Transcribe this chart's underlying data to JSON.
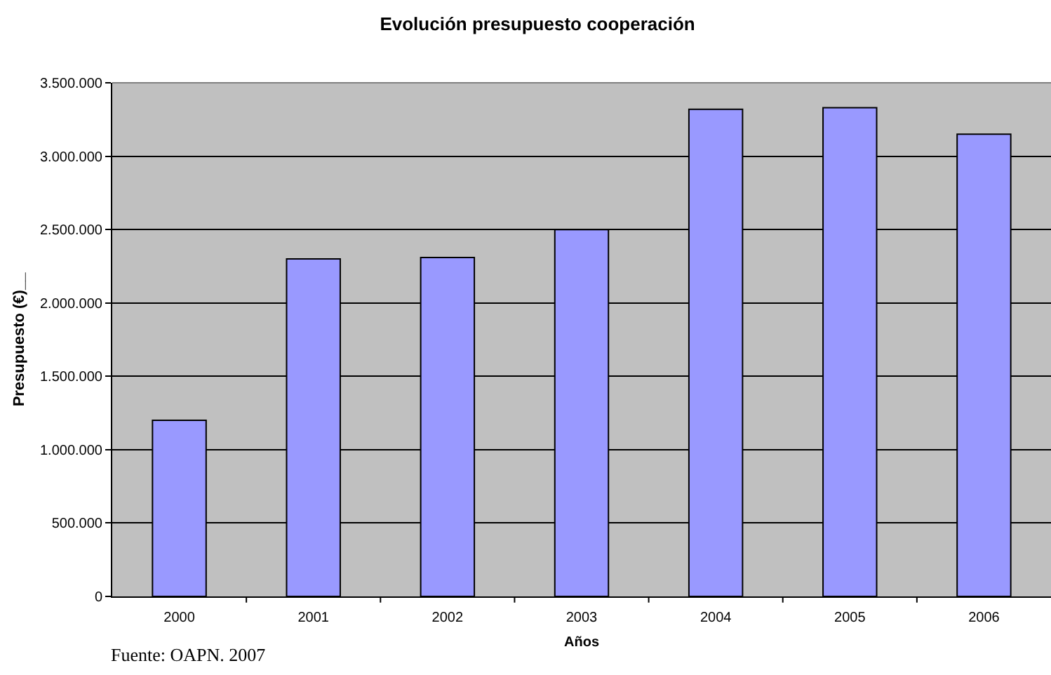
{
  "chart_data": {
    "type": "bar",
    "title": "Evolución presupuesto cooperación",
    "xlabel": "Años",
    "ylabel": "Presupuesto (€)__",
    "categories": [
      "2000",
      "2001",
      "2002",
      "2003",
      "2004",
      "2005",
      "2006"
    ],
    "values": [
      1200000,
      2300000,
      2310000,
      2500000,
      3320000,
      3330000,
      3150000
    ],
    "color": "#9999ff",
    "ylim": [
      0,
      3500000
    ],
    "yticks": [
      0,
      {
        "value": 500000,
        "label": "500.000"
      },
      {
        "value": 1000000,
        "label": "1.000.000"
      },
      {
        "value": 1500000,
        "label": "1.500.000"
      },
      {
        "value": 2000000,
        "label": "2.000.000"
      },
      {
        "value": 2500000,
        "label": "2.500.000"
      },
      {
        "value": 3000000,
        "label": "3.000.000"
      },
      {
        "value": 3500000,
        "label": "3.500.000"
      }
    ],
    "grid": "y",
    "annotations": [
      "Fuente: OAPN. 2007"
    ]
  }
}
